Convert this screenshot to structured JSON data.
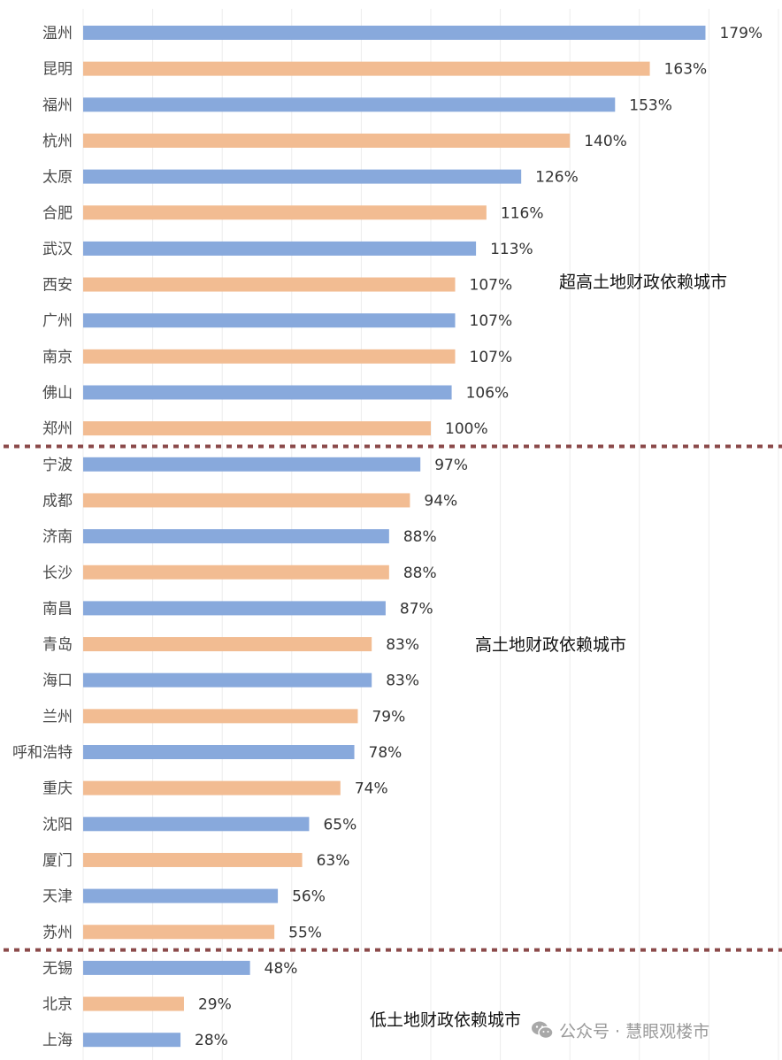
{
  "chart_data": {
    "type": "bar",
    "orientation": "horizontal",
    "categories": [
      "温州",
      "昆明",
      "福州",
      "杭州",
      "太原",
      "合肥",
      "武汉",
      "西安",
      "广州",
      "南京",
      "佛山",
      "郑州",
      "宁波",
      "成都",
      "济南",
      "长沙",
      "南昌",
      "青岛",
      "海口",
      "兰州",
      "呼和浩特",
      "重庆",
      "沈阳",
      "厦门",
      "天津",
      "苏州",
      "无锡",
      "北京",
      "上海"
    ],
    "values": [
      179,
      163,
      153,
      140,
      126,
      116,
      113,
      107,
      107,
      107,
      106,
      100,
      97,
      94,
      88,
      88,
      87,
      83,
      83,
      79,
      78,
      74,
      65,
      63,
      56,
      55,
      48,
      29,
      28
    ],
    "value_labels": [
      "179%",
      "163%",
      "153%",
      "140%",
      "126%",
      "116%",
      "113%",
      "107%",
      "107%",
      "107%",
      "106%",
      "100%",
      "97%",
      "94%",
      "88%",
      "88%",
      "87%",
      "83%",
      "83%",
      "79%",
      "78%",
      "74%",
      "65%",
      "63%",
      "56%",
      "55%",
      "48%",
      "29%",
      "28%"
    ],
    "unit": "%",
    "xlim": [
      0,
      200
    ],
    "grid": true,
    "bar_colors": [
      "#88a9dc",
      "#f2bc92"
    ],
    "group_dividers_after": [
      "郑州",
      "苏州"
    ],
    "divider_color": "#8b4a4a",
    "zones": [
      {
        "label": "超高土地财政依赖城市",
        "category": "西安"
      },
      {
        "label": "高土地财政依赖城市",
        "category": "青岛"
      },
      {
        "label": "低土地财政依赖城市",
        "category": "北京"
      }
    ]
  },
  "watermark": {
    "icon": "wechat-icon",
    "text": "公众号 · 慧眼观楼市"
  }
}
